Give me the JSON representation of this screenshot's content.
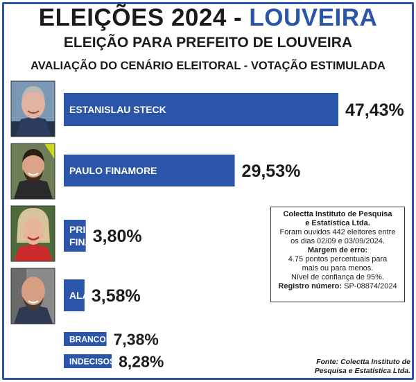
{
  "header": {
    "title_main": "ELEIÇÕES 2024 - ",
    "title_accent": "LOUVEIRA",
    "subtitle": "ELEIÇÃO PARA PREFEITO DE LOUVEIRA",
    "subtitle2": "AVALIAÇÃO DO CENÁRIO ELEITORAL - VOTAÇÃO ESTIMULADA"
  },
  "chart_data": {
    "type": "bar",
    "orientation": "horizontal",
    "categories": [
      "ESTANISLAU STECK",
      "PAULO FINAMORE",
      "PRISCILLA FINAMORE",
      "ALAN JACUÍ",
      "BRANCOS/NULOS",
      "INDECISOS"
    ],
    "values": [
      47.43,
      29.53,
      3.8,
      3.58,
      7.38,
      8.28
    ],
    "value_labels": [
      "47,43%",
      "29,53%",
      "3,80%",
      "3,58%",
      "7,38%",
      "8,28%"
    ],
    "unit": "%",
    "bar_color": "#2a55a8"
  },
  "note": {
    "line1": "Colectta Instituto de Pesquisa",
    "line2": "e Estatística Ltda.",
    "line3": "Foram ouvidos 442 eleitores entre",
    "line4": "os dias 02/09 e 03/09/2024.",
    "line5": "Margem de erro:",
    "line6": "4.75 pontos percentuais para",
    "line7": "mais ou para menos.",
    "line8": "Nível de confiança de 95%.",
    "line9_label": "Registro número:",
    "line9_value": " SP-08874/2024"
  },
  "source": {
    "line1": "Fonte: Colectta Instituto de",
    "line2": "Pesquisa e Estatística Ltda."
  },
  "colors": {
    "accent": "#2a55a8",
    "text": "#1b1b1b"
  }
}
